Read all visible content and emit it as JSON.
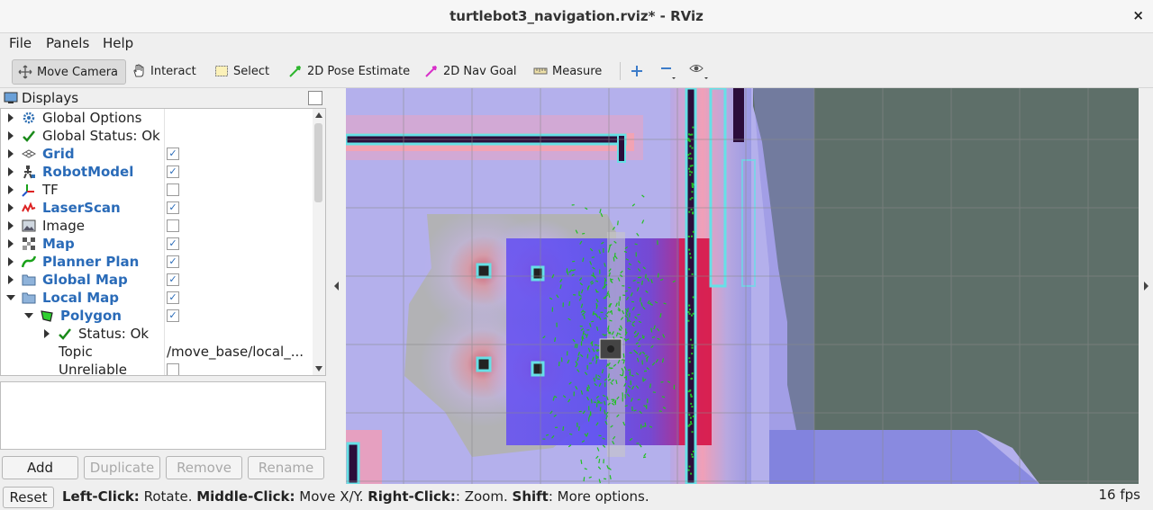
{
  "window": {
    "title": "turtlebot3_navigation.rviz* - RViz",
    "close_icon": "×"
  },
  "menu": {
    "file": "File",
    "panels": "Panels",
    "help": "Help"
  },
  "toolbar": {
    "move_camera": "Move Camera",
    "interact": "Interact",
    "select": "Select",
    "pose_estimate": "2D Pose Estimate",
    "nav_goal": "2D Nav Goal",
    "measure": "Measure"
  },
  "displays": {
    "title": "Displays",
    "rows": [
      {
        "name": "Global Options",
        "icon": "gear-icon"
      },
      {
        "name": "Global Status: Ok",
        "icon": "check-icon"
      },
      {
        "name": "Grid",
        "icon": "grid-icon",
        "checked": true
      },
      {
        "name": "RobotModel",
        "icon": "robot-icon",
        "checked": true
      },
      {
        "name": "TF",
        "icon": "axes-icon",
        "checked": false
      },
      {
        "name": "LaserScan",
        "icon": "laser-icon",
        "checked": true
      },
      {
        "name": "Image",
        "icon": "image-icon",
        "checked": false
      },
      {
        "name": "Map",
        "icon": "map-icon",
        "checked": true
      },
      {
        "name": "Planner Plan",
        "icon": "path-icon",
        "checked": true
      },
      {
        "name": "Global Map",
        "icon": "folder-icon",
        "checked": true
      },
      {
        "name": "Local Map",
        "icon": "folder-icon",
        "checked": true
      },
      {
        "name": "Polygon",
        "icon": "polygon-icon",
        "checked": true
      },
      {
        "name": "Status: Ok",
        "icon": "check-icon"
      },
      {
        "name": "Topic",
        "value": "/move_base/local_..."
      },
      {
        "name": "Unreliable",
        "checked": false
      }
    ],
    "check_glyph": "✓"
  },
  "buttons": {
    "add": "Add",
    "duplicate": "Duplicate",
    "remove": "Remove",
    "rename": "Rename"
  },
  "status": {
    "reset": "Reset",
    "left_click": "Left-Click:",
    "left_text": " Rotate. ",
    "middle_click": "Middle-Click:",
    "middle_text": " Move X/Y. ",
    "right_click": "Right-Click:",
    "right_text": ": Zoom. ",
    "shift": "Shift",
    "shift_text": ": More options.",
    "fps": "16 fps"
  }
}
